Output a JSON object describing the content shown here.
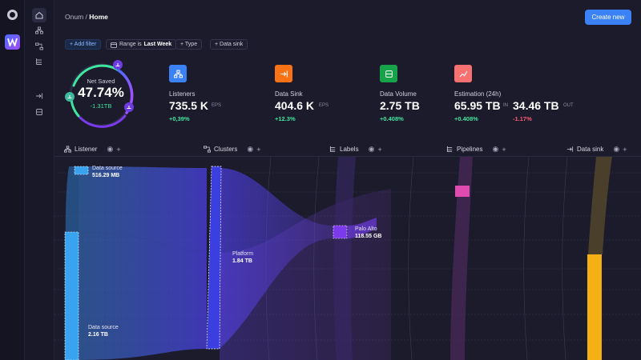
{
  "header": {
    "breadcrumb_root": "Onum",
    "breadcrumb_sep": "/",
    "breadcrumb_current": "Home",
    "create_label": "Create new"
  },
  "filters": {
    "add_label": "+ Add filter",
    "range_prefix": "Range is",
    "range_value": "Last Week",
    "type_label": "+ Type",
    "sink_label": "+ Data sink"
  },
  "gauge": {
    "label": "Net Saved",
    "value": "47.74%",
    "delta": "-1.31TB",
    "percent": 47.74
  },
  "stats": {
    "listeners": {
      "title": "Listeners",
      "value": "735.5 K",
      "unit": "EPS",
      "change": "+0,39%"
    },
    "data_sink": {
      "title": "Data Sink",
      "value": "404.6 K",
      "unit": "EPS",
      "change": "+12.3%"
    },
    "data_volume": {
      "title": "Data Volume",
      "value": "2.75 TB",
      "change": "+0.408%"
    },
    "estimation": {
      "title": "Estimation (24h)",
      "value_in": "65.95 TB",
      "unit_in": "IN",
      "value_out": "34.46 TB",
      "unit_out": "OUT",
      "change_in": "+0.408%",
      "change_out": "-1.17%"
    }
  },
  "columns": {
    "listener": "Listener",
    "clusters": "Clusters",
    "labels": "Labels",
    "pipelines": "Pipelines",
    "data_sink": "Data sink"
  },
  "sankey": {
    "source1_name": "Data source",
    "source1_size": "516.29 MB",
    "source2_name": "Data source",
    "source2_size": "2.16 TB",
    "platform_name": "Platform",
    "platform_size": "1.84 TB",
    "paloalto_name": "Palo Alto",
    "paloalto_size": "118.55 GB"
  },
  "colors": {
    "accent": "#3b82f6",
    "listeners_icon": "#3b82f6",
    "sink_icon": "#f97316",
    "volume_icon": "#16a34a",
    "estimation_icon": "#f87171",
    "positive": "#3ee6a0",
    "negative": "#ff5a78"
  },
  "icons": {
    "rail": [
      "onum-logo-icon",
      "workspace-icon"
    ],
    "nav": [
      "home-icon",
      "hierarchy-icon",
      "flow-icon",
      "tree-icon",
      "enter-icon",
      "storage-icon"
    ],
    "column": [
      "eye-icon",
      "plus-icon"
    ]
  }
}
